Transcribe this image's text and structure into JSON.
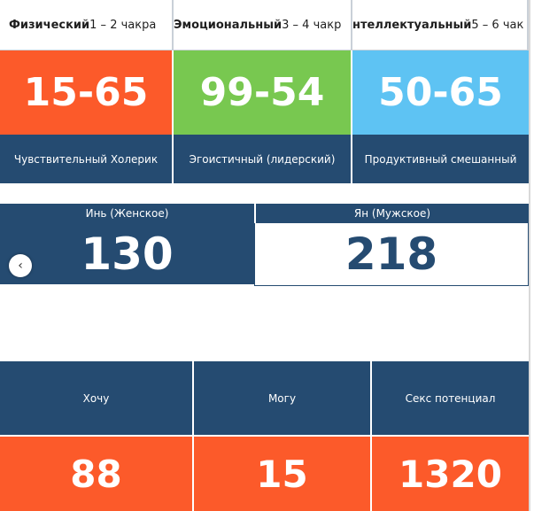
{
  "categories": [
    {
      "title_bold": "Физический",
      "title_rest": " 1 – 2 чакра",
      "value": "15-65",
      "description": "Чувствительный Холерик",
      "color": "#fc5a2a"
    },
    {
      "title_bold": "Эмоциональный",
      "title_rest": " 3 – 4 чакр",
      "value": "99-54",
      "description": "Эгоистичный (лидерский)",
      "color": "#78c850"
    },
    {
      "title_bold": "нтеллектуальный",
      "title_rest": " 5 – 6 чак",
      "value": "50-65",
      "description": "Продуктивный смешанный",
      "color": "#5ec3f3"
    }
  ],
  "yin": {
    "label": "Инь (Женское)",
    "value": "130"
  },
  "yang": {
    "label": "Ян (Мужское)",
    "value": "218"
  },
  "carousel": {
    "prev_icon": "‹"
  },
  "bottom": [
    {
      "label": "Хочу",
      "value": "88"
    },
    {
      "label": "Могу",
      "value": "15"
    },
    {
      "label": "Секс потенциал",
      "value": "1320"
    }
  ],
  "colors": {
    "navy": "#254b71",
    "orange": "#fc5a2a",
    "green": "#78c850",
    "blue": "#5ec3f3"
  }
}
